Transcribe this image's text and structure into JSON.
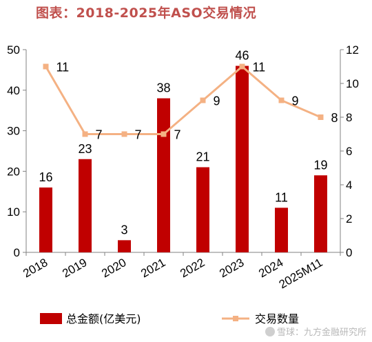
{
  "title": "图表：2018-2025年ASO交易情况",
  "watermark": "雪球：九方金融研究所",
  "colors": {
    "bar": "#c00000",
    "line": "#f4b183",
    "title": "#c0504d",
    "axis": "#808080"
  },
  "chart_data": {
    "type": "bar",
    "categories": [
      "2018",
      "2019",
      "2020",
      "2021",
      "2022",
      "2023",
      "2024",
      "2025M11"
    ],
    "series": [
      {
        "name": "总金额(亿美元)",
        "type": "bar",
        "axis": "left",
        "values": [
          16,
          23,
          3,
          38,
          21,
          46,
          11,
          19
        ]
      },
      {
        "name": "交易数量",
        "type": "line",
        "axis": "right",
        "values": [
          11,
          7,
          7,
          7,
          9,
          11,
          9,
          8
        ]
      }
    ],
    "y_left": {
      "min": 0,
      "max": 50,
      "ticks": [
        0,
        10,
        20,
        30,
        40,
        50
      ]
    },
    "y_right": {
      "min": 0,
      "max": 12,
      "ticks": [
        0,
        2,
        4,
        6,
        8,
        10,
        12
      ]
    },
    "legend": "bottom",
    "grid": false
  }
}
